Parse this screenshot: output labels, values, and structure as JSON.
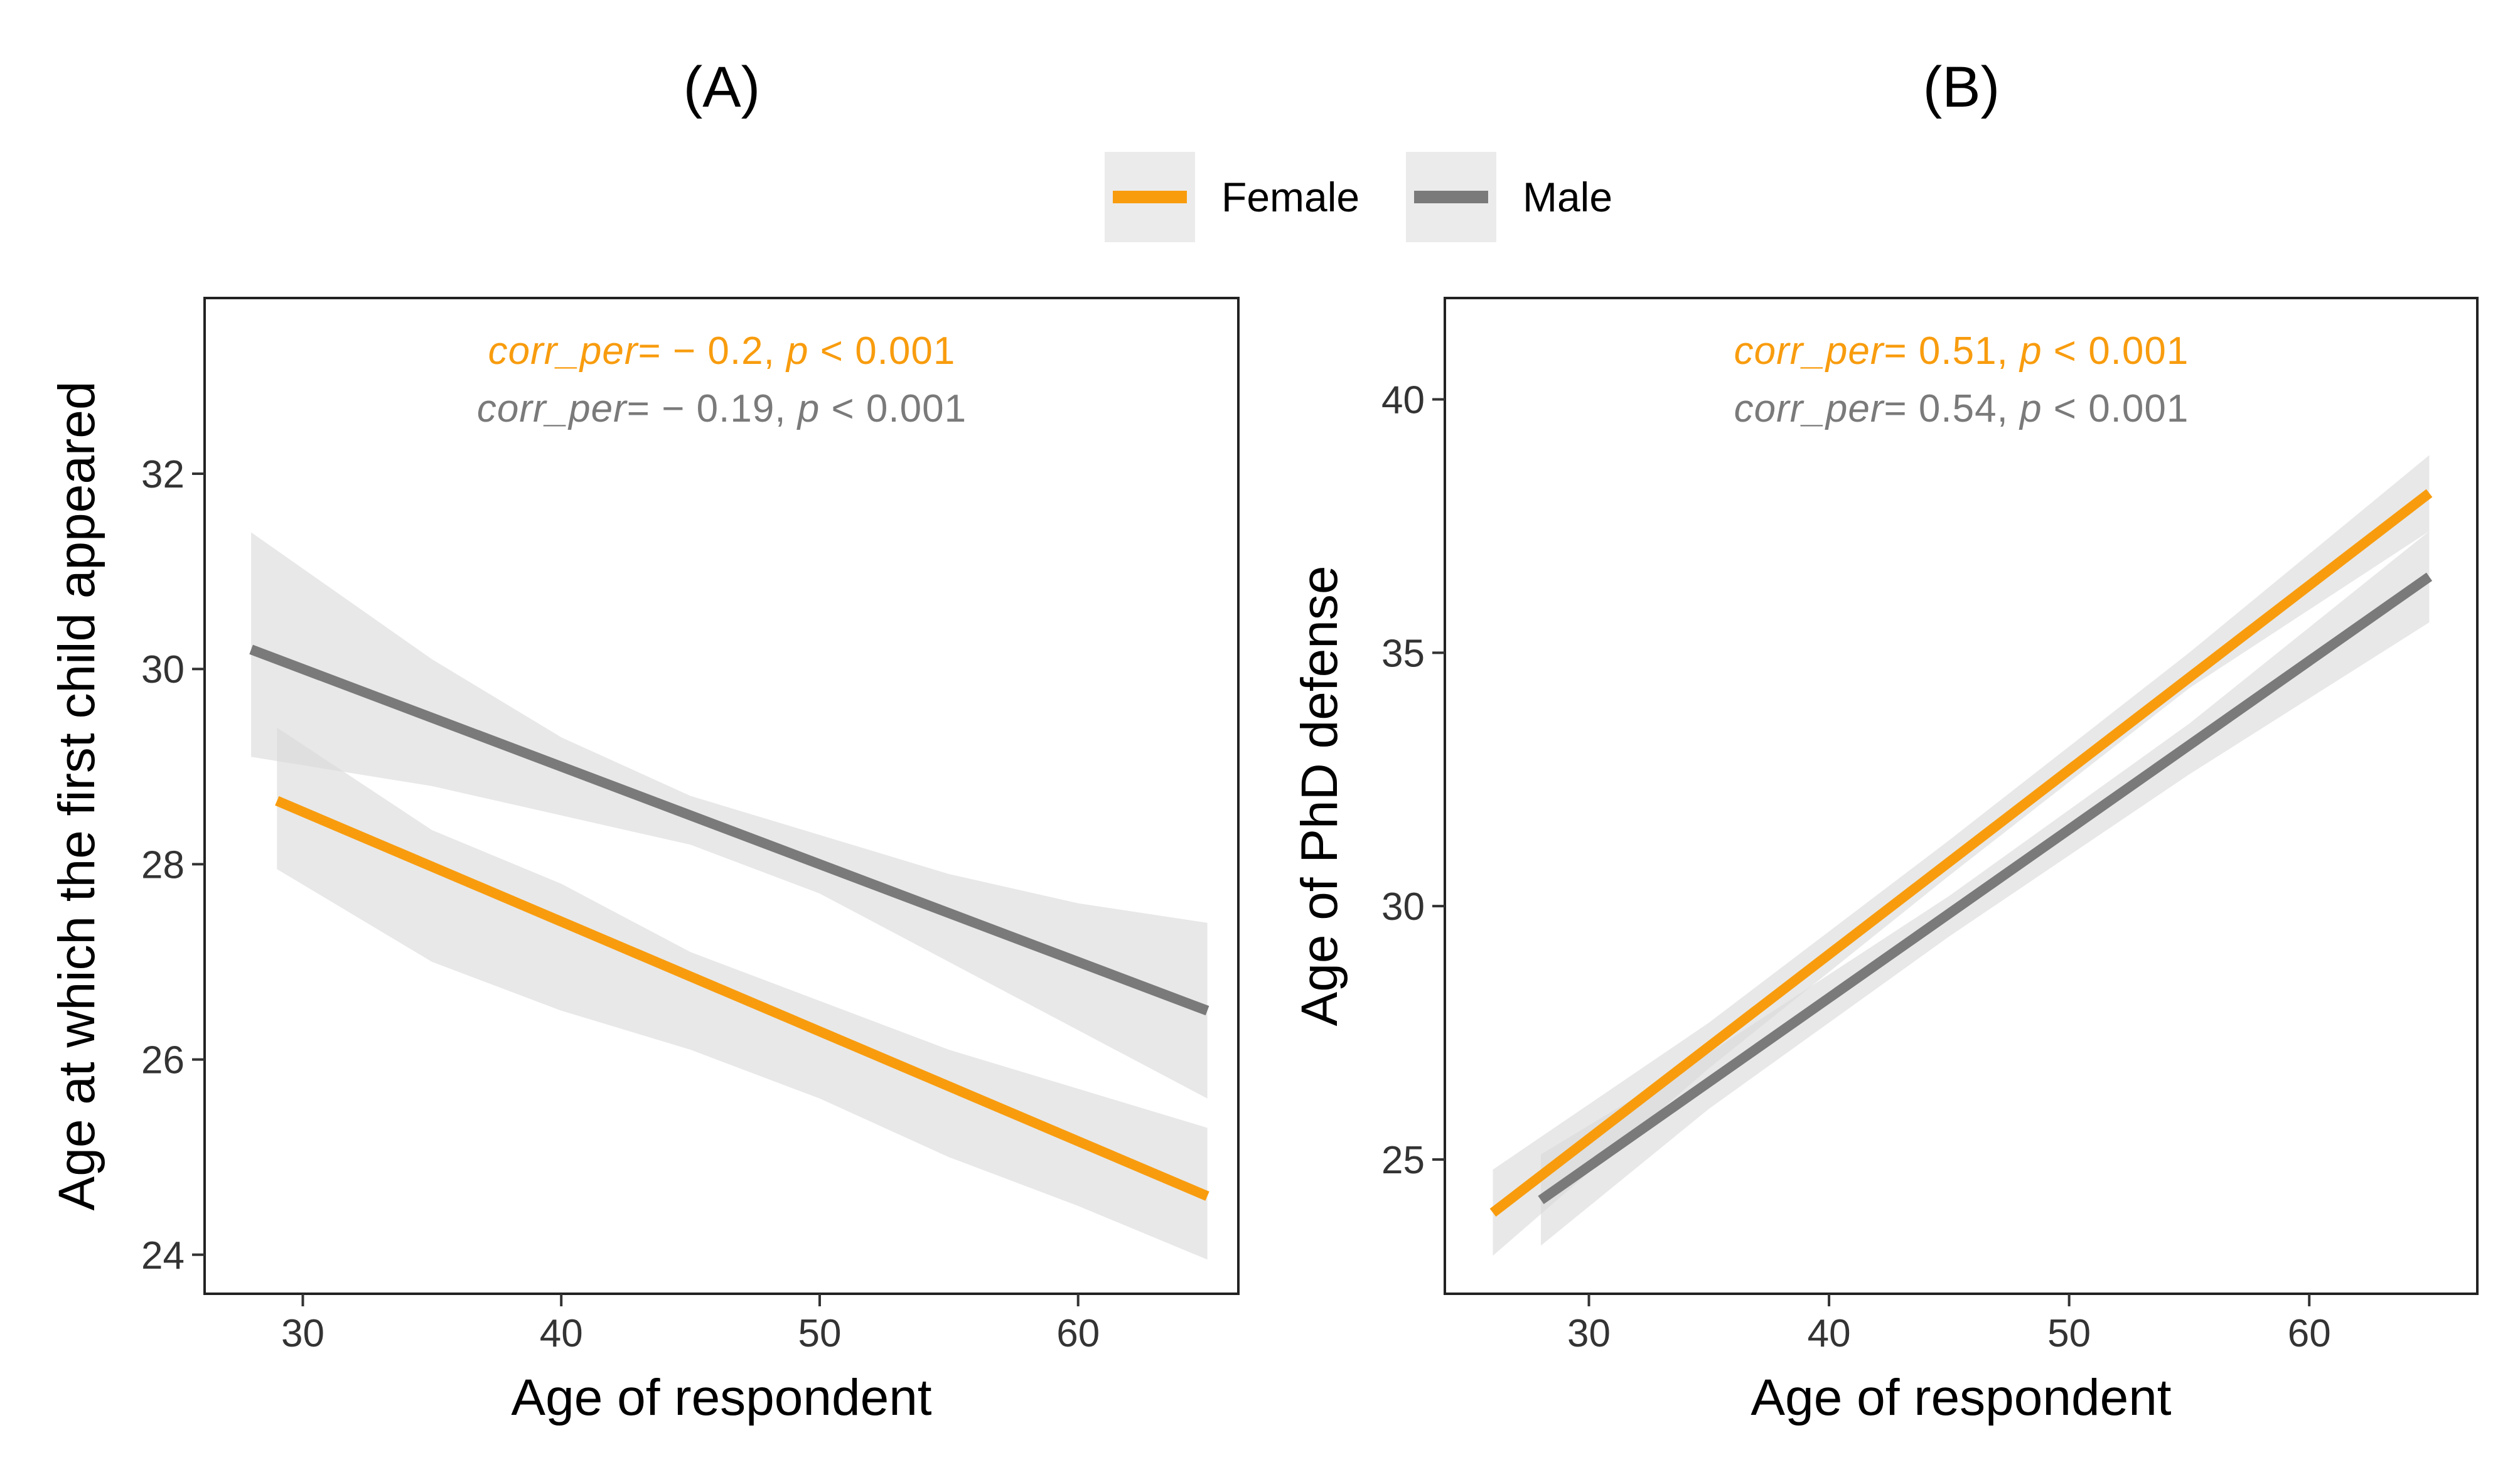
{
  "colors": {
    "female": "#F89C0E",
    "male": "#7A7A7A",
    "ribbon": "#D9D9D9"
  },
  "legend": {
    "items": [
      {
        "key": "female",
        "label": "Female"
      },
      {
        "key": "male",
        "label": "Male"
      }
    ]
  },
  "chart_data": [
    {
      "type": "line",
      "panel_label": "(A)",
      "xlabel": "Age of respondent",
      "ylabel": "Age at which the first child appeared",
      "xlim": [
        26.2,
        66.2
      ],
      "ylim": [
        23.6,
        33.8
      ],
      "xticks": [
        30,
        40,
        50,
        60
      ],
      "yticks": [
        24,
        26,
        28,
        30,
        32
      ],
      "series": [
        {
          "name": "Female",
          "color_key": "female",
          "x": [
            29,
            65
          ],
          "y": [
            28.65,
            24.6
          ],
          "band_x": [
            29,
            35,
            40,
            45,
            50,
            55,
            60,
            65
          ],
          "band_lower": [
            27.95,
            27.0,
            26.5,
            26.1,
            25.6,
            25.0,
            24.5,
            23.95
          ],
          "band_upper": [
            29.4,
            28.35,
            27.8,
            27.1,
            26.6,
            26.1,
            25.7,
            25.3
          ]
        },
        {
          "name": "Male",
          "color_key": "male",
          "x": [
            28,
            65
          ],
          "y": [
            30.2,
            26.5
          ],
          "band_x": [
            28,
            35,
            40,
            45,
            50,
            55,
            60,
            65
          ],
          "band_lower": [
            29.1,
            28.8,
            28.5,
            28.2,
            27.7,
            27.0,
            26.3,
            25.6
          ],
          "band_upper": [
            31.4,
            30.1,
            29.3,
            28.7,
            28.3,
            27.9,
            27.6,
            27.4
          ]
        }
      ],
      "annotations": [
        {
          "color_key": "female",
          "stat": "corr_per",
          "value": "= − 0.2, ",
          "p_label": "p",
          "p_value": " < 0.001"
        },
        {
          "color_key": "male",
          "stat": "corr_per",
          "value": "= − 0.19, ",
          "p_label": "p",
          "p_value": " < 0.001"
        }
      ]
    },
    {
      "type": "line",
      "panel_label": "(B)",
      "xlabel": "Age of respondent",
      "ylabel": "Age of PhD defense",
      "xlim": [
        24.0,
        67.0
      ],
      "ylim": [
        22.35,
        42.0
      ],
      "xticks": [
        30,
        40,
        50,
        60
      ],
      "yticks": [
        25,
        30,
        35,
        40
      ],
      "series": [
        {
          "name": "Female",
          "color_key": "female",
          "x": [
            26,
            65
          ],
          "y": [
            23.95,
            38.15
          ],
          "band_x": [
            26,
            35,
            45,
            55,
            65
          ],
          "band_lower": [
            23.1,
            26.8,
            30.6,
            34.3,
            37.4
          ],
          "band_upper": [
            24.8,
            27.7,
            31.3,
            35.0,
            38.9
          ]
        },
        {
          "name": "Male",
          "color_key": "male",
          "x": [
            28,
            65
          ],
          "y": [
            24.2,
            36.5
          ],
          "band_x": [
            28,
            35,
            45,
            55,
            65
          ],
          "band_lower": [
            23.3,
            26.0,
            29.4,
            32.6,
            35.6
          ],
          "band_upper": [
            25.1,
            27.1,
            30.2,
            33.6,
            37.4
          ]
        }
      ],
      "annotations": [
        {
          "color_key": "female",
          "stat": "corr_per",
          "value": "= 0.51, ",
          "p_label": "p",
          "p_value": " < 0.001"
        },
        {
          "color_key": "male",
          "stat": "corr_per",
          "value": "= 0.54, ",
          "p_label": "p",
          "p_value": " < 0.001"
        }
      ]
    }
  ]
}
